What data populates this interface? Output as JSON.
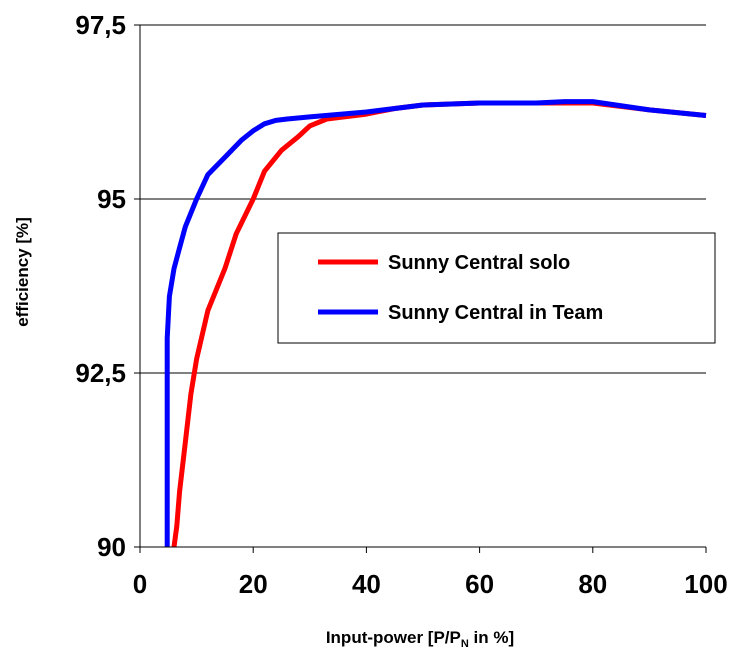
{
  "chart_data": {
    "type": "line",
    "title": "",
    "xlabel": "Input-power [P/P",
    "xlabel_sub": "N",
    "xlabel_suffix": " in %]",
    "ylabel": "efficiency [%]",
    "xlim": [
      0,
      100
    ],
    "ylim": [
      90,
      97.5
    ],
    "x_ticks": [
      0,
      20,
      40,
      60,
      80,
      100
    ],
    "x_tick_labels": [
      "0",
      "20",
      "40",
      "60",
      "80",
      "100"
    ],
    "y_ticks": [
      90,
      92.5,
      95,
      97.5
    ],
    "y_tick_labels": [
      "90",
      "92,5",
      "95",
      "97,5"
    ],
    "grid": "horizontal",
    "legend_position": "center-right",
    "series": [
      {
        "name": "Sunny Central solo",
        "color": "#ff0000",
        "points": [
          [
            6,
            90.0
          ],
          [
            6.5,
            90.3
          ],
          [
            7,
            90.8
          ],
          [
            8,
            91.5
          ],
          [
            9,
            92.2
          ],
          [
            10,
            92.7
          ],
          [
            12,
            93.4
          ],
          [
            15,
            94.0
          ],
          [
            17,
            94.5
          ],
          [
            20,
            95.0
          ],
          [
            22,
            95.4
          ],
          [
            25,
            95.7
          ],
          [
            28,
            95.9
          ],
          [
            30,
            96.05
          ],
          [
            33,
            96.15
          ],
          [
            40,
            96.22
          ],
          [
            45,
            96.3
          ],
          [
            50,
            96.35
          ],
          [
            60,
            96.38
          ],
          [
            70,
            96.38
          ],
          [
            80,
            96.38
          ],
          [
            90,
            96.28
          ],
          [
            100,
            96.2
          ]
        ]
      },
      {
        "name": "Sunny Central in Team",
        "color": "#0000ff",
        "points": [
          [
            4.8,
            90.0
          ],
          [
            4.8,
            92.0
          ],
          [
            4.8,
            93.0
          ],
          [
            5.2,
            93.6
          ],
          [
            6,
            94.0
          ],
          [
            7,
            94.3
          ],
          [
            8,
            94.6
          ],
          [
            10,
            95.0
          ],
          [
            12,
            95.35
          ],
          [
            15,
            95.6
          ],
          [
            18,
            95.85
          ],
          [
            20,
            95.98
          ],
          [
            22,
            96.08
          ],
          [
            24,
            96.13
          ],
          [
            26,
            96.15
          ],
          [
            30,
            96.18
          ],
          [
            40,
            96.25
          ],
          [
            50,
            96.35
          ],
          [
            60,
            96.38
          ],
          [
            70,
            96.38
          ],
          [
            75,
            96.4
          ],
          [
            80,
            96.4
          ],
          [
            90,
            96.28
          ],
          [
            100,
            96.2
          ]
        ]
      }
    ]
  }
}
